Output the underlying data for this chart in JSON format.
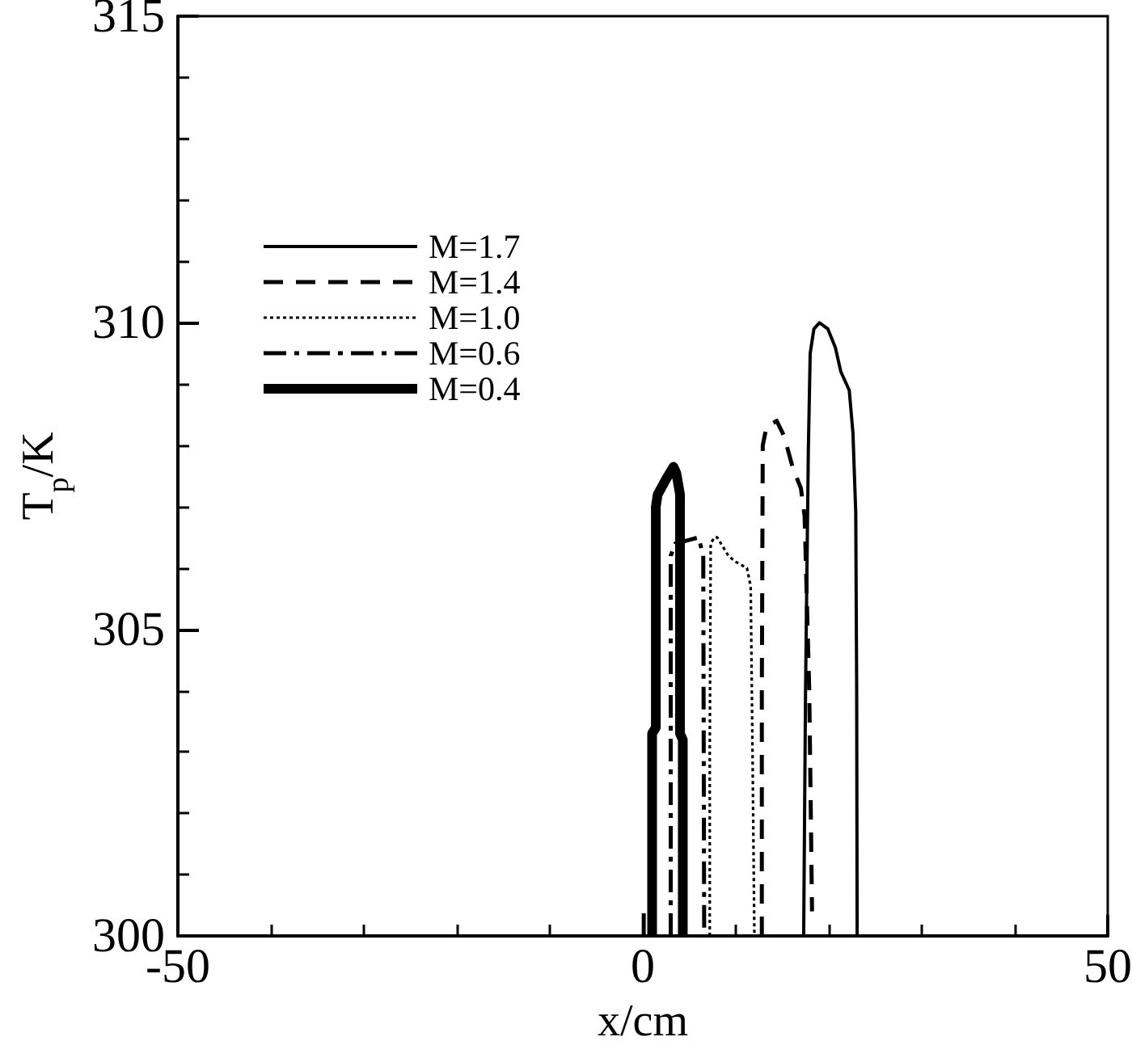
{
  "chart_data": {
    "type": "line",
    "xlabel": "x/cm",
    "ylabel": "T$_{p}$/K",
    "xlim": [
      -50,
      50
    ],
    "xticks": [
      -50,
      {
        "value": -40,
        "label": null
      },
      {
        "value": -30,
        "label": null
      },
      {
        "value": -20,
        "label": null
      },
      {
        "value": -10,
        "label": null
      },
      0,
      {
        "value": 10,
        "label": null
      },
      {
        "value": 20,
        "label": null
      },
      {
        "value": 30,
        "label": null
      },
      {
        "value": 40,
        "label": null
      },
      50
    ],
    "ylim": [
      300,
      315
    ],
    "yticks": [
      300,
      {
        "value": 301,
        "label": null
      },
      {
        "value": 302,
        "label": null
      },
      {
        "value": 303,
        "label": null
      },
      {
        "value": 304,
        "label": null
      },
      305,
      {
        "value": 306,
        "label": null
      },
      {
        "value": 307,
        "label": null
      },
      {
        "value": 308,
        "label": null
      },
      {
        "value": 309,
        "label": null
      },
      310,
      {
        "value": 311,
        "label": null
      },
      {
        "value": 312,
        "label": null
      },
      {
        "value": 313,
        "label": null
      },
      {
        "value": 314,
        "label": null
      },
      315
    ],
    "grid": false,
    "legend": "top left",
    "marker": "none",
    "series": [
      {
        "name": "M=1.7",
        "color": "#000000",
        "line_style": "solid",
        "x": [
          17.3,
          17.5,
          17.8,
          18.0,
          18.4,
          19.0,
          19.9,
          20.7,
          21.3,
          22.2,
          22.6,
          22.9,
          23.0,
          23.05
        ],
        "values": [
          300,
          304,
          307.9,
          309.5,
          309.9,
          310,
          309.9,
          309.6,
          309.2,
          308.9,
          308.2,
          306.9,
          304,
          300
        ]
      },
      {
        "name": "M=1.4",
        "color": "#000000",
        "line_style": "dashed",
        "x": [
          12.8,
          12.8,
          12.9,
          13.3,
          14.4,
          15.2,
          16.1,
          17.0,
          17.4,
          17.9,
          18.2
        ],
        "values": [
          300,
          304,
          308.0,
          308.3,
          308.4,
          308.15,
          307.65,
          307.3,
          306.85,
          304,
          300.4
        ]
      },
      {
        "name": "M=1.0",
        "color": "#000000",
        "line_style": "dotted",
        "x": [
          7.2,
          7.2,
          7.3,
          7.7,
          8.0,
          9.2,
          10.0,
          11.2,
          11.6,
          11.8,
          12.0
        ],
        "values": [
          300,
          303,
          306.4,
          306.5,
          306.5,
          306.2,
          306.1,
          306.0,
          305.7,
          303,
          300
        ]
      },
      {
        "name": "M=0.6",
        "color": "#000000",
        "line_style": "dashdot",
        "x": [
          0.1,
          0.1,
          1.5,
          3.0,
          3.0,
          3.0,
          3.5,
          4.8,
          6.0,
          6.5,
          6.6
        ],
        "values": [
          300,
          300.4,
          null,
          300,
          303,
          306.2,
          306.4,
          306.45,
          306.5,
          306.2,
          300
        ]
      },
      {
        "name": "M=0.4",
        "color": "#000000",
        "line_style": "solid",
        "x": [
          1.0,
          1.0,
          1.4,
          1.4,
          1.6,
          2.5,
          3.3,
          3.6,
          4.0,
          4.0,
          4.3,
          4.3
        ],
        "values": [
          300,
          303.3,
          303.4,
          307.0,
          307.2,
          307.45,
          307.65,
          307.55,
          307.2,
          303.3,
          303.2,
          300
        ]
      }
    ]
  }
}
